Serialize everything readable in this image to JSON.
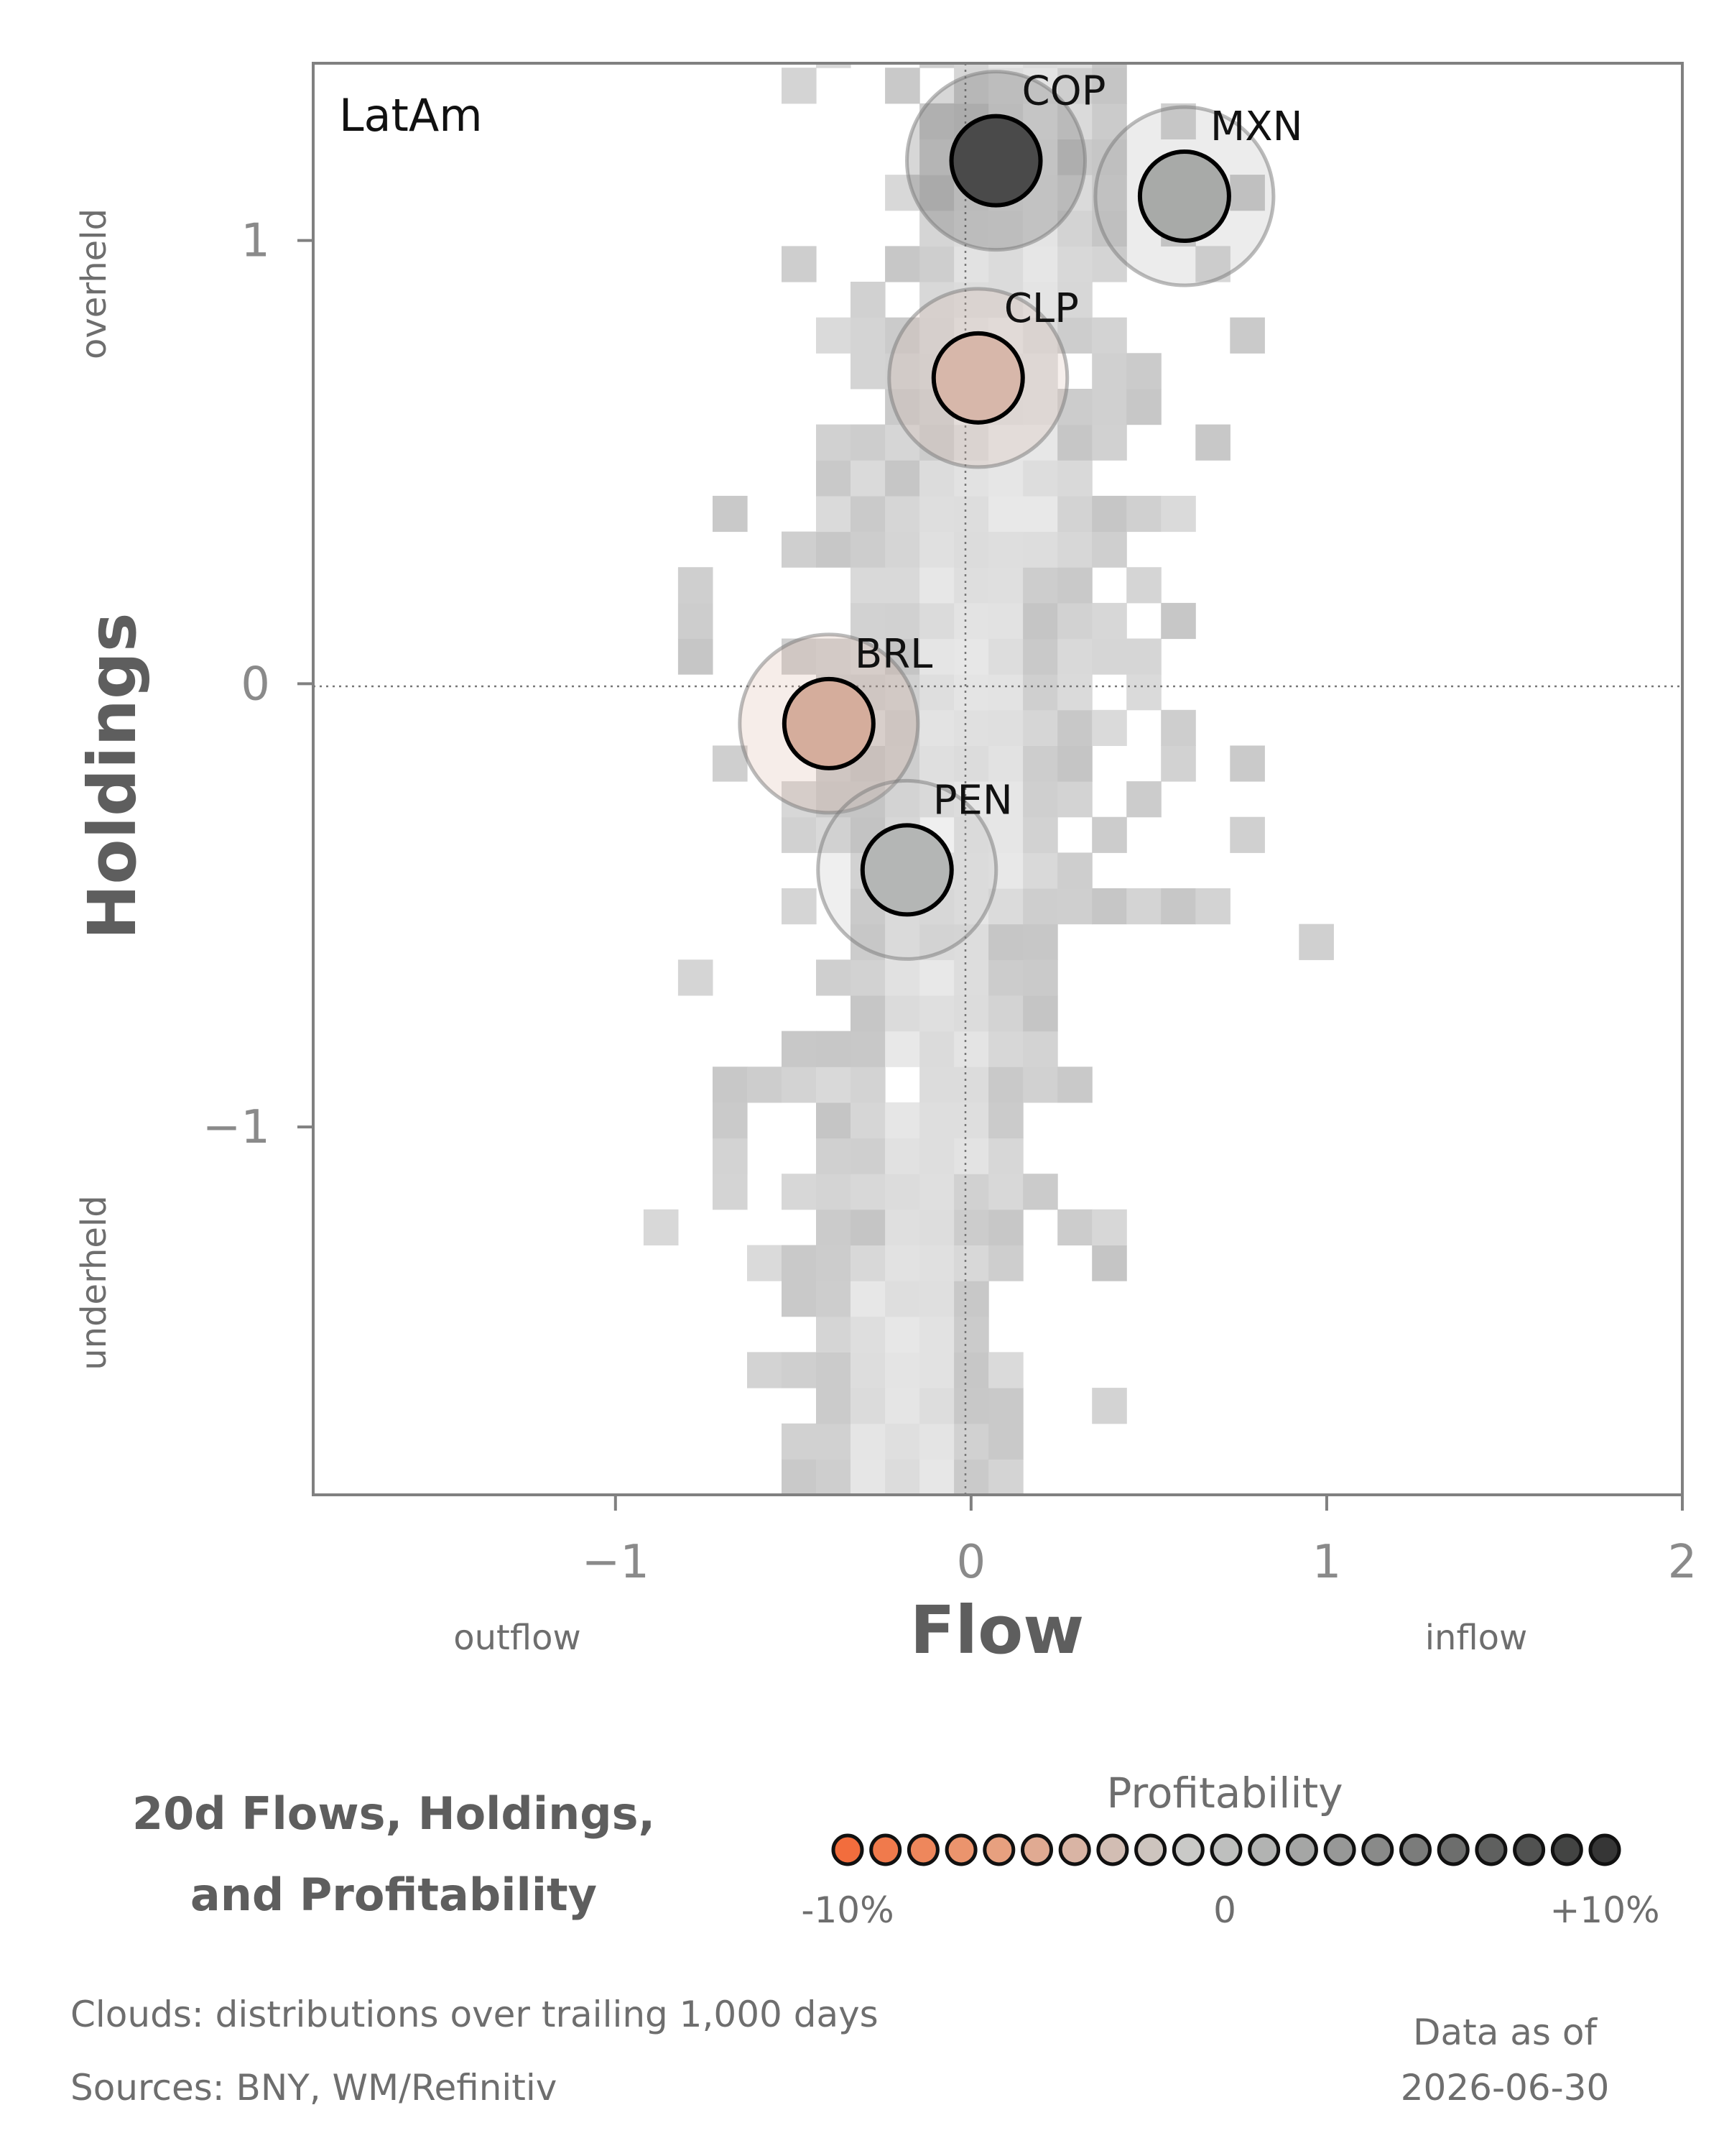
{
  "chart_data": {
    "type": "scatter",
    "panel_label": "LatAm",
    "xlabel": "Flow",
    "ylabel": "Holdings",
    "x_left_label": "outflow",
    "x_right_label": "inflow",
    "y_top_label": "overheld",
    "y_bottom_label": "underheld",
    "xlim": [
      -1.85,
      2.0
    ],
    "ylim": [
      -1.83,
      1.4
    ],
    "x_ticks": [
      {
        "value": -1,
        "label": "−1"
      },
      {
        "value": 0,
        "label": "0"
      },
      {
        "value": 1,
        "label": "1"
      },
      {
        "value": 2,
        "label": "2"
      }
    ],
    "y_ticks": [
      {
        "value": 1,
        "label": "1"
      },
      {
        "value": 0,
        "label": "0"
      },
      {
        "value": -1,
        "label": "−1"
      }
    ],
    "reference_lines": {
      "x": 0,
      "y": 0
    },
    "grid": false,
    "points": [
      {
        "label": "COP",
        "x": 0.07,
        "y": 1.18,
        "profitability": 10,
        "color": "#4a4a4a"
      },
      {
        "label": "MXN",
        "x": 0.6,
        "y": 1.1,
        "profitability": 3,
        "color": "#a8aaa8"
      },
      {
        "label": "CLP",
        "x": 0.02,
        "y": 0.69,
        "profitability": -2,
        "color": "#d7b7aa"
      },
      {
        "label": "BRL",
        "x": -0.4,
        "y": -0.09,
        "profitability": -3,
        "color": "#d5ad9c"
      },
      {
        "label": "PEN",
        "x": -0.18,
        "y": -0.42,
        "profitability": 2,
        "color": "#b4b6b5"
      }
    ],
    "cloud": {
      "description": "distributions over trailing 1,000 days",
      "color": "#c8c8c8"
    }
  },
  "footer": {
    "title_line1": "20d Flows, Holdings,",
    "title_line2": "and Profitability",
    "legend_title": "Profitability",
    "legend_min_label": "-10%",
    "legend_mid_label": "0",
    "legend_max_label": "+10%",
    "legend_colors": [
      "#f26d3d",
      "#f07a4c",
      "#ee875c",
      "#eb946d",
      "#e7a07f",
      "#e0aa92",
      "#d9b4a4",
      "#d2bdb3",
      "#cdc4be",
      "#c9c9c7",
      "#bebfbe",
      "#b2b3b2",
      "#a5a6a5",
      "#979897",
      "#898a89",
      "#7b7c7b",
      "#6d6e6d",
      "#5f605f",
      "#515251",
      "#434443",
      "#363636"
    ],
    "note_clouds": "Clouds:  distributions over trailing 1,000 days",
    "note_sources": "Sources:  BNY, WM/Refinitiv",
    "data_as_of_label": "Data as of",
    "data_as_of_date": "2026-06-30"
  }
}
